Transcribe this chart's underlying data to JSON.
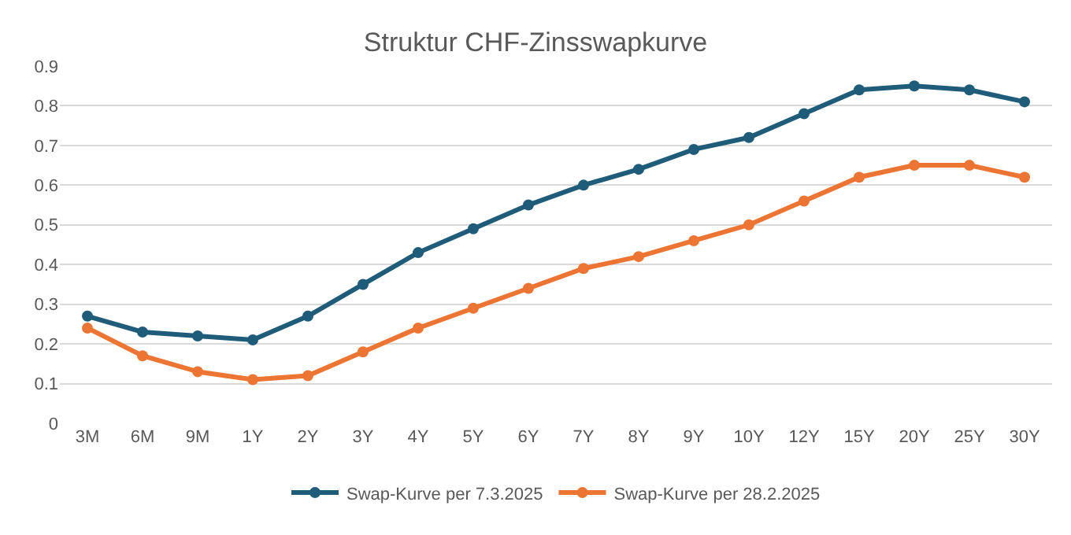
{
  "chart_data": {
    "type": "line",
    "title": "Struktur CHF-Zinsswapkurve",
    "categories": [
      "3M",
      "6M",
      "9M",
      "1Y",
      "2Y",
      "3Y",
      "4Y",
      "5Y",
      "6Y",
      "7Y",
      "8Y",
      "9Y",
      "10Y",
      "12Y",
      "15Y",
      "20Y",
      "25Y",
      "30Y"
    ],
    "series": [
      {
        "name": "Swap-Kurve per 7.3.2025",
        "color": "#1f5c7a",
        "values": [
          0.27,
          0.23,
          0.22,
          0.21,
          0.27,
          0.35,
          0.43,
          0.49,
          0.55,
          0.6,
          0.64,
          0.69,
          0.72,
          0.78,
          0.84,
          0.85,
          0.84,
          0.81
        ]
      },
      {
        "name": "Swap-Kurve per 28.2.2025",
        "color": "#ed7533",
        "values": [
          0.24,
          0.17,
          0.13,
          0.11,
          0.12,
          0.18,
          0.24,
          0.29,
          0.34,
          0.39,
          0.42,
          0.46,
          0.5,
          0.56,
          0.62,
          0.65,
          0.65,
          0.62
        ]
      }
    ],
    "ylim": [
      0,
      0.9
    ],
    "yticks": [
      0,
      0.1,
      0.2,
      0.3,
      0.4,
      0.5,
      0.6,
      0.7,
      0.8,
      0.9
    ],
    "grid": "y",
    "legend": "bottom",
    "marker": "circle",
    "line_style": "solid"
  }
}
